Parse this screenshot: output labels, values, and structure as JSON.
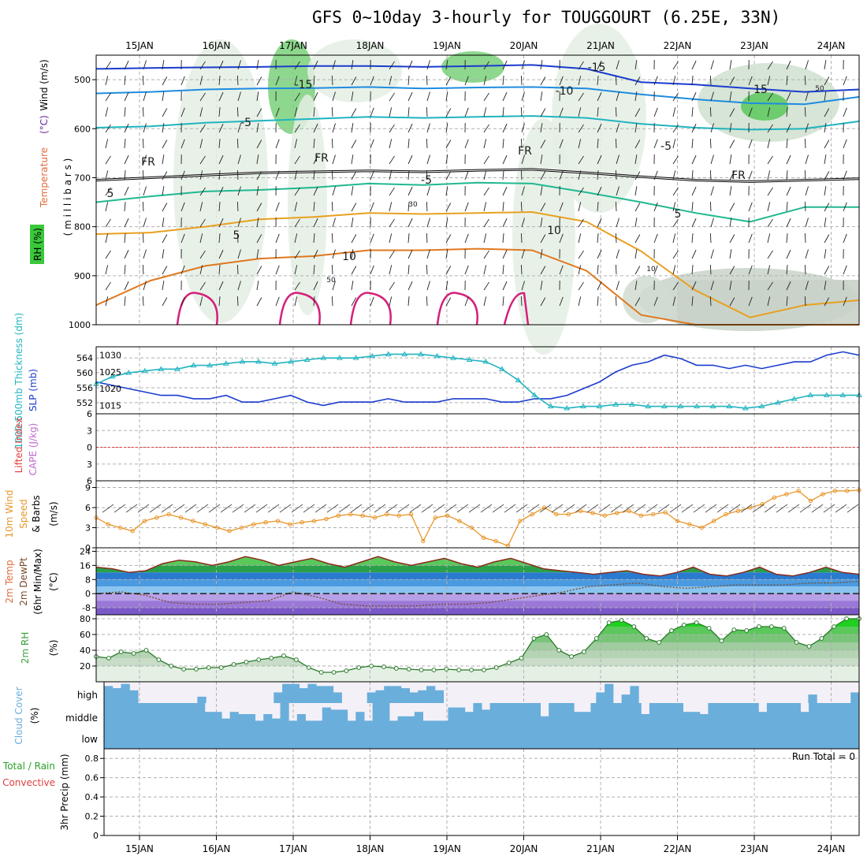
{
  "title": "GFS 0~10day 3-hourly for TOUGGOURT (6.25E, 33N)",
  "dates": [
    "15JAN",
    "16JAN",
    "17JAN",
    "18JAN",
    "19JAN",
    "20JAN",
    "21JAN",
    "22JAN",
    "23JAN",
    "24JAN"
  ],
  "colors": {
    "slp": "#1a3ccf",
    "thick": "#22b4c0",
    "wind10": "#e8962a",
    "rh2m": "#3aa03a",
    "cloud": "#6aaedb",
    "li": "#e04040"
  },
  "chart_data": [
    {
      "type": "heatmap",
      "panel": "upper_air",
      "ylabel_parts": [
        {
          "text": "Wind (m/s)",
          "color": "#000000"
        },
        {
          "text": "Temperature",
          "color": "#e06a3a"
        },
        {
          "text": "(°C)",
          "color": "#6a2a9a"
        }
      ],
      "ylabel2": "( m i l l i b a r s )",
      "rh_label": "RH (%)",
      "yticks": [
        "500",
        "600",
        "700",
        "800",
        "900",
        "1000"
      ],
      "ylim": [
        1000,
        450
      ],
      "contour_labels": [
        "-15",
        "-15",
        "-10",
        "-5",
        "-5",
        "FR",
        "FR",
        "FR",
        "FR",
        "-5",
        "5",
        "5",
        "5",
        "10",
        "10",
        "15",
        "50",
        "30",
        "50",
        "10"
      ],
      "isotherms": [
        {
          "label": "-15",
          "color": "#1a3ccf",
          "p": [
            478,
            476,
            475,
            474,
            472,
            472,
            474,
            472,
            470,
            478,
            505,
            510,
            518,
            525,
            520
          ]
        },
        {
          "label": "-10",
          "color": "#1e8ce0",
          "p": [
            528,
            525,
            520,
            518,
            517,
            515,
            518,
            516,
            515,
            518,
            530,
            540,
            548,
            550,
            535
          ]
        },
        {
          "label": "-5",
          "color": "#20b4c0",
          "p": [
            598,
            595,
            588,
            584,
            580,
            576,
            578,
            576,
            574,
            578,
            590,
            598,
            602,
            600,
            585
          ]
        },
        {
          "label": "FR",
          "color": "#000000",
          "p": [
            705,
            700,
            695,
            690,
            688,
            686,
            688,
            685,
            683,
            690,
            698,
            705,
            708,
            705,
            702
          ]
        },
        {
          "label": "5",
          "color": "#20b890",
          "p": [
            750,
            738,
            728,
            725,
            720,
            712,
            715,
            710,
            712,
            730,
            750,
            772,
            790,
            760,
            760
          ]
        },
        {
          "label": "10",
          "color": "#e8a020",
          "p": [
            815,
            812,
            800,
            785,
            780,
            772,
            774,
            772,
            770,
            790,
            850,
            930,
            985,
            960,
            950
          ]
        },
        {
          "label": "15",
          "color": "#e07820",
          "p": [
            960,
            910,
            880,
            865,
            860,
            848,
            848,
            845,
            848,
            890,
            980,
            1000,
            1000,
            1000,
            1000
          ]
        }
      ]
    },
    {
      "type": "line",
      "panel": "slp_thickness",
      "ylabel": "1000-500mb Thickness (dm)",
      "ylabel2": "SLP (mb)",
      "yticks_left": [
        "564",
        "560",
        "556",
        "552"
      ],
      "yticks_right": [
        "1030",
        "1025",
        "1020",
        "1015"
      ],
      "series": [
        {
          "name": "SLP (mb)",
          "axis": "right",
          "values": [
            1022,
            1021,
            1020,
            1019,
            1018,
            1018,
            1017,
            1017,
            1018,
            1016,
            1016,
            1017,
            1018,
            1016,
            1015,
            1016,
            1016,
            1016,
            1017,
            1016,
            1016,
            1016,
            1017,
            1017,
            1017,
            1016,
            1016,
            1017,
            1017,
            1018,
            1020,
            1022,
            1025,
            1027,
            1028,
            1030,
            1029,
            1027,
            1027,
            1026,
            1027,
            1026,
            1027,
            1028,
            1028,
            1030,
            1031,
            1030
          ]
        },
        {
          "name": "1000-500mb Thickness (dm)",
          "axis": "left",
          "values": [
            557,
            559,
            560,
            560.5,
            561,
            561,
            562,
            562,
            562.5,
            563,
            563,
            562.5,
            563,
            563.5,
            564,
            564,
            564,
            564.5,
            565,
            565,
            565,
            564.5,
            564,
            563.5,
            563,
            561,
            558,
            554,
            551,
            550.5,
            551,
            551,
            551.5,
            551.5,
            551,
            551,
            551,
            551,
            551,
            551,
            550.5,
            551,
            552,
            553,
            554,
            554,
            554,
            554
          ]
        }
      ]
    },
    {
      "type": "line",
      "panel": "stability",
      "ylabel": "Lifted Index",
      "ylabel2": "CAPE (J/kg)",
      "yticks": [
        "6",
        "3",
        "0",
        "3",
        "6"
      ],
      "ylim": [
        -6,
        6
      ],
      "series": [
        {
          "name": "Lifted Index",
          "values": [
            0,
            0
          ]
        }
      ]
    },
    {
      "type": "line",
      "panel": "wind10m",
      "ylabel": "10m Wind Speed & Barbs",
      "ylabel_parts": [
        {
          "text": "10m Wind",
          "color": "#e8962a"
        },
        {
          "text": "Speed",
          "color": "#e8962a"
        },
        {
          "text": "& Barbs",
          "color": "#000000"
        }
      ],
      "ylabel2": "(m/s)",
      "yticks": [
        "9",
        "6",
        "3",
        "0"
      ],
      "ylim": [
        0,
        10
      ],
      "series": [
        {
          "name": "10m Wind Speed",
          "values": [
            4.5,
            3.5,
            3,
            2.5,
            4,
            4.5,
            5,
            4.5,
            4,
            3.5,
            3,
            2.5,
            3,
            3.5,
            3.8,
            4,
            3.5,
            3.8,
            4,
            4.3,
            4.8,
            5,
            4.8,
            4.5,
            5,
            4.8,
            5,
            1,
            4.5,
            4.8,
            4,
            3,
            1.5,
            1,
            0.3,
            4,
            5,
            6,
            5,
            5,
            5.5,
            5.2,
            4.8,
            5.2,
            5.5,
            4.8,
            5,
            5.3,
            4,
            3.5,
            3,
            4,
            5,
            5.5,
            6,
            6.5,
            7.5,
            8,
            8.5,
            7,
            8,
            8.5,
            8.5,
            8.6
          ]
        }
      ]
    },
    {
      "type": "area",
      "panel": "temp2m",
      "ylabel_parts": [
        {
          "text": "2m Temp",
          "color": "#e06a3a"
        },
        {
          "text": "2m DewPt",
          "color": "#7a4a2a"
        },
        {
          "text": "(6hr Min/Max)",
          "color": "#000000"
        }
      ],
      "ylabel2": "(°C)",
      "yticks": [
        "24",
        "16",
        "8",
        "0",
        "-8"
      ],
      "ylim": [
        -12,
        26
      ],
      "series": [
        {
          "name": "2m Temp",
          "values": [
            15,
            14,
            12,
            13,
            17,
            19,
            18,
            16,
            18,
            21,
            19,
            16,
            18,
            20,
            17,
            15,
            18,
            21,
            18,
            16,
            18,
            20,
            17,
            15,
            18,
            20,
            17,
            14,
            13,
            12,
            11,
            12,
            13,
            11,
            10,
            12,
            15,
            11,
            10,
            12,
            15,
            11,
            10,
            12,
            15,
            12,
            11
          ]
        },
        {
          "name": "2m DewPt",
          "values": [
            0,
            1,
            -1,
            -5,
            -6,
            -6,
            -5,
            -4,
            1,
            -2,
            -6,
            -7,
            -7,
            -7,
            -6,
            -6,
            -5,
            -3,
            -1,
            1,
            4,
            5,
            6,
            4,
            3,
            4,
            5,
            5,
            5,
            6,
            6,
            7
          ]
        }
      ]
    },
    {
      "type": "area",
      "panel": "rh2m",
      "ylabel": "2m RH",
      "ylabel2": "(%)",
      "yticks": [
        "80",
        "60",
        "40",
        "20"
      ],
      "ylim": [
        0,
        85
      ],
      "series": [
        {
          "name": "2m RH",
          "values": [
            32,
            30,
            38,
            36,
            40,
            28,
            20,
            16,
            16,
            18,
            18,
            22,
            25,
            28,
            30,
            33,
            28,
            18,
            12,
            12,
            14,
            18,
            20,
            19,
            17,
            16,
            15,
            15,
            16,
            15,
            15,
            15,
            18,
            24,
            30,
            55,
            60,
            40,
            32,
            38,
            55,
            75,
            78,
            70,
            55,
            50,
            65,
            72,
            75,
            68,
            52,
            66,
            65,
            70,
            70,
            68,
            50,
            45,
            55,
            70,
            80,
            80
          ]
        }
      ]
    },
    {
      "type": "heatmap",
      "panel": "cloud",
      "ylabel": "Cloud Cover",
      "ylabel2": "(%)",
      "levels": [
        "high",
        "middle",
        "low"
      ],
      "high": [
        0.8,
        0.7,
        0.9,
        0.6,
        0,
        0,
        0,
        0,
        0,
        0,
        0,
        0.3,
        0,
        0,
        0,
        0,
        0,
        0,
        0,
        0,
        0.5,
        0.9,
        0.9,
        0.7,
        0.9,
        0.8,
        0.8,
        0.5,
        0,
        0,
        0,
        0.5,
        0.6,
        0.8,
        0.8,
        0.7,
        0.5,
        0.6,
        0.8,
        0.6,
        0,
        0,
        0,
        0,
        0,
        0,
        0,
        0,
        0,
        0,
        0,
        0,
        0,
        0,
        0,
        0,
        0,
        0,
        0.5,
        0.9,
        0,
        0.4,
        0.8,
        0,
        0,
        0,
        0,
        0,
        0,
        0,
        0,
        0,
        0,
        0,
        0,
        0,
        0,
        0,
        0,
        0,
        0,
        0,
        0,
        0.4,
        0,
        0,
        0,
        0,
        0.5
      ],
      "middle": [
        1,
        1,
        1,
        1,
        1,
        1,
        1,
        1,
        1,
        1,
        1,
        1,
        0.6,
        0.6,
        0.3,
        0.6,
        0.5,
        0.5,
        0.2,
        0.5,
        0.3,
        1,
        0.2,
        0.5,
        0.2,
        0.2,
        0.8,
        0.7,
        0.7,
        0.2,
        0.6,
        0.2,
        1,
        1,
        0.2,
        0.4,
        0.4,
        0.6,
        0.2,
        0.2,
        0.2,
        0.8,
        0.8,
        0.6,
        1,
        0.7,
        1,
        1,
        1,
        1,
        1,
        1,
        0.4,
        1,
        1,
        1,
        0.6,
        0.6,
        1,
        1,
        1,
        1,
        1,
        1,
        0.5,
        1,
        1,
        1,
        1,
        0.6,
        0.6,
        0.5,
        1,
        1,
        1,
        1,
        1,
        1,
        0.6,
        1,
        1,
        1,
        1,
        0.6,
        1,
        1,
        1,
        1,
        1,
        1
      ],
      "low": [
        1,
        1
      ]
    },
    {
      "type": "bar",
      "panel": "precip",
      "ylabel_parts": [
        {
          "text": "Total / Rain",
          "color": "#2aa02a"
        },
        {
          "text": "Convective",
          "color": "#e04040"
        }
      ],
      "ylabel2": "3hr Precip (mm)",
      "annotation": "Run Total = 0",
      "yticks": [
        "0.8",
        "0.6",
        "0.4",
        "0.2",
        "0"
      ],
      "ylim": [
        0,
        0.9
      ],
      "values": [
        0
      ]
    }
  ]
}
